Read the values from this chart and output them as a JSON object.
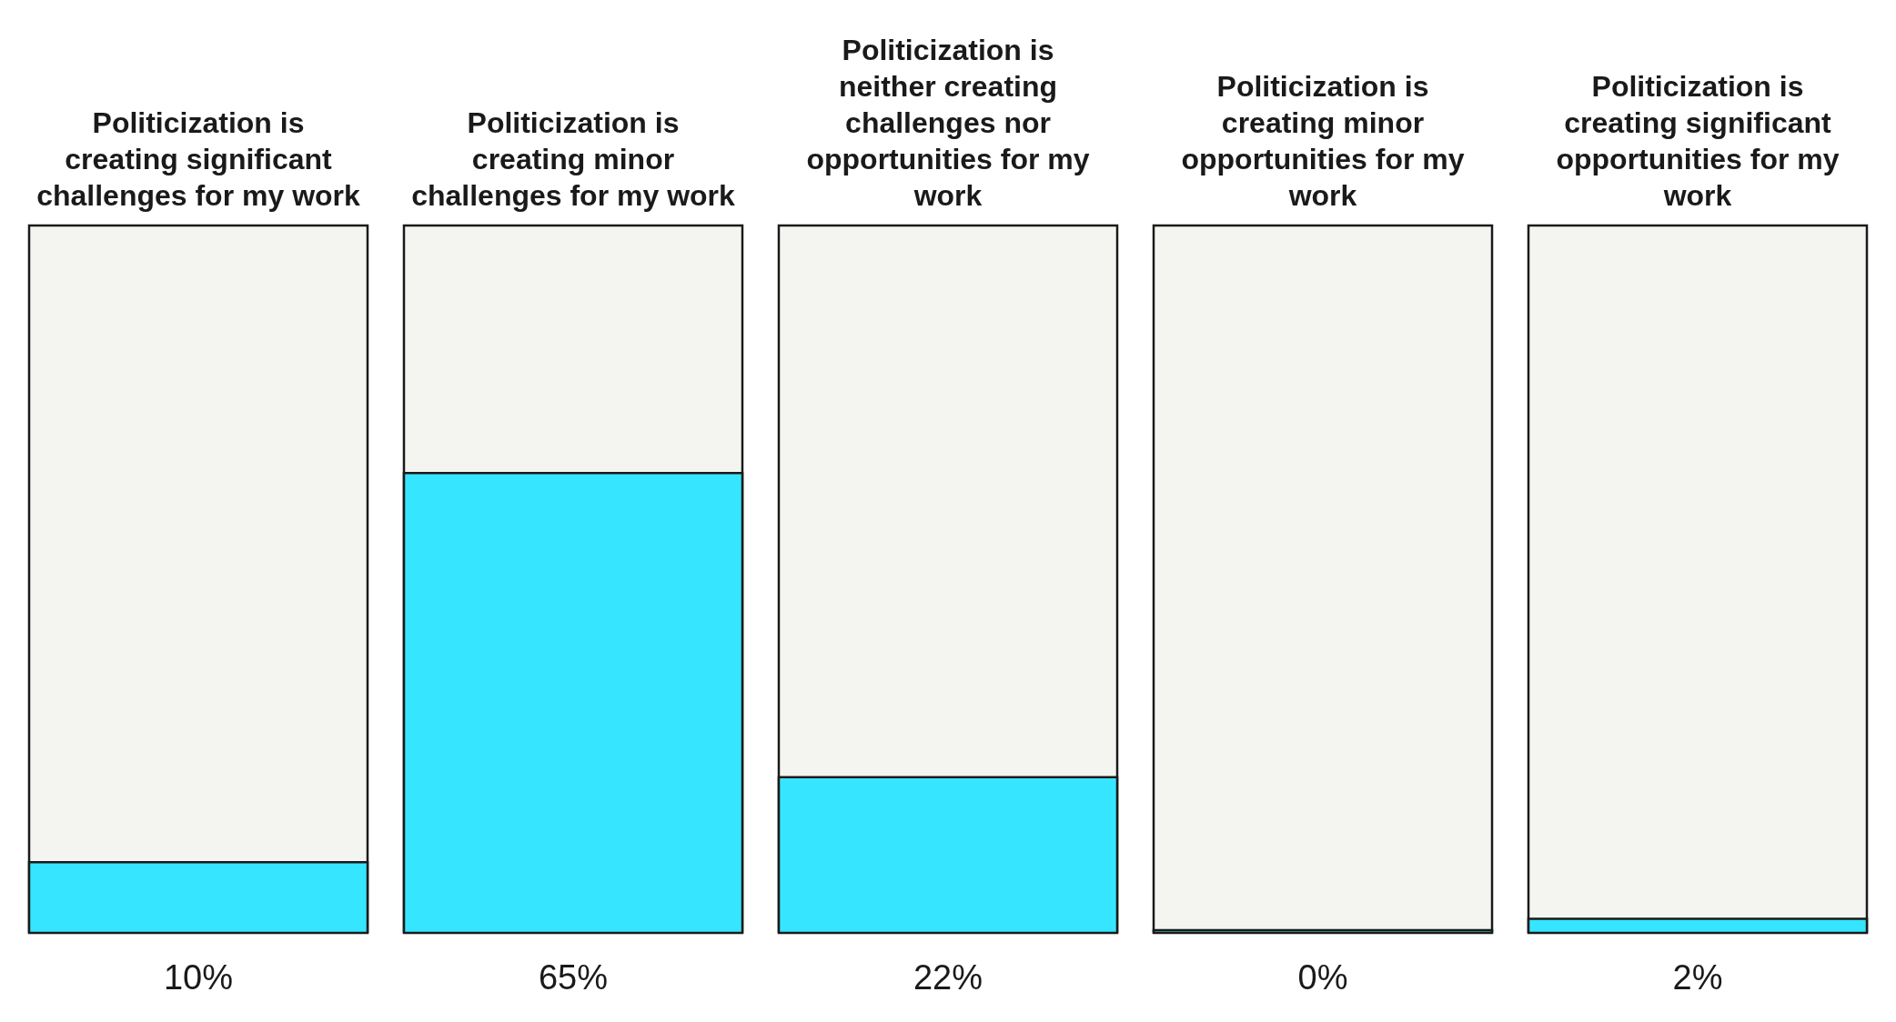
{
  "chart_data": {
    "type": "bar",
    "categories": [
      "Politicization is creating significant challenges for my work",
      "Politicization is creating minor challenges for my work",
      "Politicization is neither creating challenges nor opportunities for my work",
      "Politicization is creating minor opportunities for my work",
      "Politicization is creating significant opportunities for my work"
    ],
    "values": [
      10,
      65,
      22,
      0,
      2
    ],
    "color": "#36e5ff",
    "ylim": [
      0,
      100
    ],
    "value_labels": [
      "10%",
      "65%",
      "22%",
      "0%",
      "2%"
    ],
    "tick_labels": "x"
  }
}
